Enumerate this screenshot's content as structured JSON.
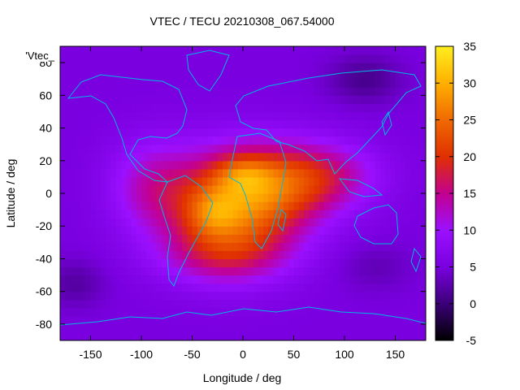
{
  "chart_data": {
    "type": "heatmap",
    "title": "VTEC / TECU 20210308_067.54000",
    "xlabel": "Longitude / deg",
    "ylabel": "Latitude / deg",
    "series_label": "'Vtec_",
    "xlim": [
      -180,
      180
    ],
    "ylim": [
      -90,
      90
    ],
    "x_ticks": [
      -150,
      -100,
      -50,
      0,
      50,
      100,
      150
    ],
    "y_ticks": [
      -80,
      -60,
      -40,
      -20,
      0,
      20,
      40,
      60,
      80
    ],
    "colorbar": {
      "range": [
        -5,
        35
      ],
      "ticks": [
        -5,
        0,
        5,
        10,
        15,
        20,
        25,
        30,
        35
      ],
      "palette": [
        "#000000",
        "#3b0078",
        "#7a00e0",
        "#9b10ff",
        "#c3008f",
        "#e03000",
        "#f06a00",
        "#ffb000",
        "#ffee20"
      ]
    },
    "field": {
      "background": 5,
      "features": [
        {
          "lon": -10,
          "lat": -10,
          "amp": 17,
          "sigma_lon": 45,
          "sigma_lat": 24
        },
        {
          "lon": 35,
          "lat": 5,
          "amp": 10,
          "sigma_lon": 45,
          "sigma_lat": 18
        },
        {
          "lon": 80,
          "lat": 12,
          "amp": 7,
          "sigma_lon": 40,
          "sigma_lat": 14
        },
        {
          "lon": -90,
          "lat": 5,
          "amp": 7,
          "sigma_lon": 30,
          "sigma_lat": 20
        },
        {
          "lon": -20,
          "lat": -38,
          "amp": 6,
          "sigma_lon": 45,
          "sigma_lat": 12
        },
        {
          "lon": 0,
          "lat": 12,
          "amp": 6,
          "sigma_lon": 20,
          "sigma_lat": 8
        },
        {
          "lon": -30,
          "lat": -12,
          "amp": 6,
          "sigma_lon": 18,
          "sigma_lat": 10
        },
        {
          "lon": 120,
          "lat": 70,
          "amp": -4,
          "sigma_lon": 25,
          "sigma_lat": 10
        },
        {
          "lon": -165,
          "lat": -55,
          "amp": -3,
          "sigma_lon": 20,
          "sigma_lat": 10
        },
        {
          "lon": 130,
          "lat": -45,
          "amp": -2,
          "sigma_lon": 25,
          "sigma_lat": 10
        }
      ]
    }
  }
}
